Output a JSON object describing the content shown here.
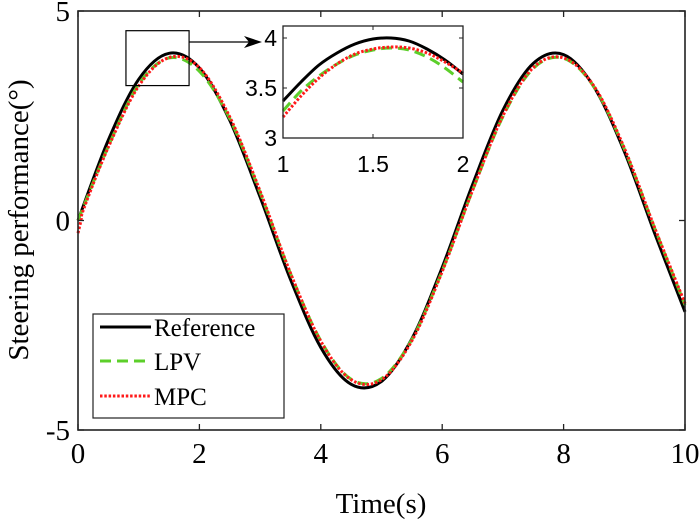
{
  "chart_data": {
    "type": "line",
    "title": "",
    "xlabel": "Time(s)",
    "ylabel": "Steering performance(°)",
    "xlim": [
      0,
      10
    ],
    "ylim": [
      -5,
      5
    ],
    "xticks": [
      "0",
      "2",
      "4",
      "6",
      "8",
      "10"
    ],
    "yticks": [
      "-5",
      "0",
      "5"
    ],
    "grid": false,
    "legend_position": "bottom-left",
    "series": [
      {
        "name": "Reference",
        "color": "#000000",
        "style": "solid",
        "x": [
          0,
          0.5,
          1,
          1.5,
          2,
          2.5,
          3,
          3.5,
          4,
          4.5,
          5,
          5.5,
          6,
          6.5,
          7,
          7.5,
          8,
          8.5,
          9,
          9.5,
          10
        ],
        "y": [
          0,
          1.92,
          3.37,
          3.99,
          3.64,
          2.39,
          0.56,
          -1.4,
          -3.03,
          -3.91,
          -3.84,
          -2.82,
          -1.12,
          0.86,
          2.63,
          3.75,
          3.96,
          3.19,
          1.65,
          -0.3,
          -2.18
        ]
      },
      {
        "name": "LPV",
        "color": "#5ccf2a",
        "style": "dashed",
        "x": [
          0,
          0.5,
          1,
          1.5,
          2,
          2.5,
          3,
          3.5,
          4,
          4.5,
          5,
          5.5,
          6,
          6.5,
          7,
          7.5,
          8,
          8.5,
          9,
          9.5,
          10
        ],
        "y": [
          0,
          1.77,
          3.25,
          3.88,
          3.56,
          2.43,
          0.67,
          -1.26,
          -2.87,
          -3.79,
          -3.77,
          -2.84,
          -1.2,
          0.72,
          2.48,
          3.63,
          3.87,
          3.19,
          1.71,
          -0.18,
          -2.02
        ]
      },
      {
        "name": "MPC",
        "color": "#ff1a1a",
        "style": "dotted",
        "x": [
          0,
          0.05,
          0.1,
          0.5,
          1,
          1.5,
          2,
          2.5,
          3,
          3.5,
          4,
          4.5,
          5,
          5.5,
          6,
          6.5,
          7,
          7.5,
          8,
          8.5,
          9,
          9.5,
          10
        ],
        "y": [
          -0.3,
          0,
          0.3,
          1.75,
          3.21,
          3.89,
          3.65,
          2.47,
          0.7,
          -1.25,
          -2.88,
          -3.8,
          -3.8,
          -2.87,
          -1.22,
          0.72,
          2.5,
          3.65,
          3.88,
          3.21,
          1.73,
          -0.17,
          -1.98
        ]
      }
    ],
    "inset": {
      "xlim": [
        1,
        2
      ],
      "ylim": [
        3,
        4.12
      ],
      "xticks": [
        "1",
        "1.5",
        "2"
      ],
      "yticks": [
        "3",
        "3.5",
        "4"
      ],
      "zoom_region": {
        "xlim": [
          0.79,
          1.83
        ],
        "ylim": [
          3.22,
          4.53
        ]
      },
      "series": [
        {
          "name": "Reference",
          "x": [
            1,
            1.1,
            1.2,
            1.3,
            1.4,
            1.5,
            1.6,
            1.7,
            1.8,
            1.9,
            2
          ],
          "y": [
            3.37,
            3.56,
            3.73,
            3.85,
            3.94,
            3.99,
            4.0,
            3.97,
            3.89,
            3.78,
            3.64
          ]
        },
        {
          "name": "LPV",
          "x": [
            1,
            1.1,
            1.2,
            1.3,
            1.4,
            1.5,
            1.6,
            1.7,
            1.8,
            1.9,
            2
          ],
          "y": [
            3.27,
            3.47,
            3.62,
            3.74,
            3.83,
            3.88,
            3.9,
            3.88,
            3.81,
            3.7,
            3.56
          ]
        },
        {
          "name": "MPC",
          "x": [
            1,
            1.1,
            1.2,
            1.3,
            1.4,
            1.5,
            1.6,
            1.7,
            1.8,
            1.9,
            2
          ],
          "y": [
            3.21,
            3.42,
            3.6,
            3.74,
            3.84,
            3.89,
            3.91,
            3.9,
            3.85,
            3.76,
            3.65
          ]
        }
      ]
    }
  }
}
